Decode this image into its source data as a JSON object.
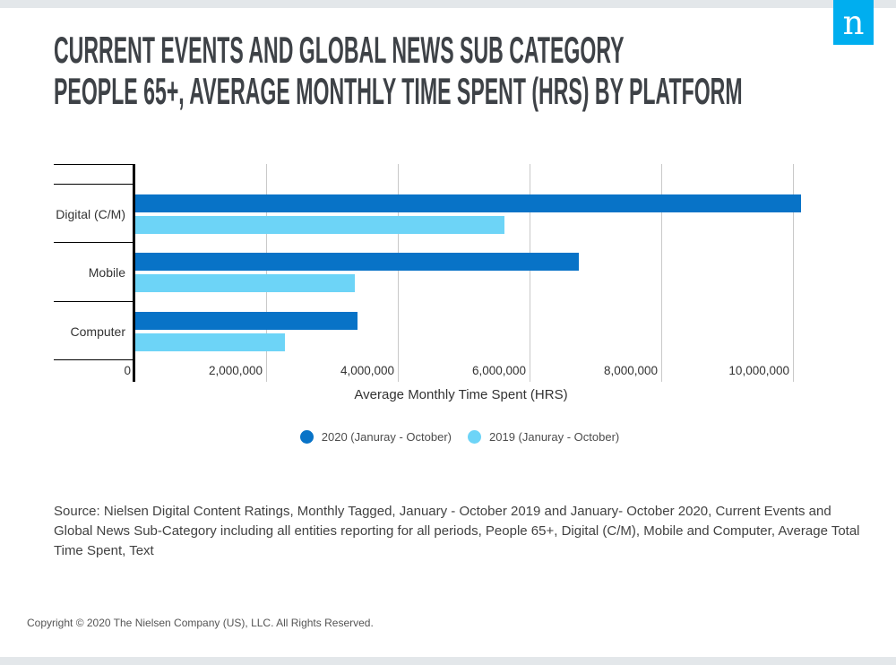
{
  "header": {
    "title_line1": "CURRENT EVENTS AND GLOBAL NEWS SUB CATEGORY",
    "title_line2": "PEOPLE 65+, AVERAGE MONTHLY TIME SPENT (HRS) BY PLATFORM",
    "logo_letter": "n"
  },
  "chart_data": {
    "type": "bar",
    "orientation": "horizontal",
    "categories": [
      "Digital (C/M)",
      "Mobile",
      "Computer"
    ],
    "series": [
      {
        "name": "2020 (Januray - October)",
        "color": "#0873c7",
        "values": [
          10110000,
          6740000,
          3370000
        ]
      },
      {
        "name": "2019 (Januray - October)",
        "color": "#6dd4f7",
        "values": [
          5600000,
          3340000,
          2270000
        ]
      }
    ],
    "xlabel": "Average Monthly Time Spent (HRS)",
    "x_ticks": [
      {
        "value": 0,
        "label": "0"
      },
      {
        "value": 2000000,
        "label": "2,000,000"
      },
      {
        "value": 4000000,
        "label": "4,000,000"
      },
      {
        "value": 6000000,
        "label": "6,000,000"
      },
      {
        "value": 8000000,
        "label": "8,000,000"
      },
      {
        "value": 10000000,
        "label": "10,000,000"
      }
    ],
    "xlim": [
      0,
      11130000
    ],
    "grid": true,
    "legend_position": "bottom"
  },
  "footer": {
    "source_text": "Source: Nielsen Digital Content Ratings, Monthly Tagged, January - October 2019 and January- October 2020, Current Events and Global News Sub-Category including all entities reporting for all periods, People 65+, Digital (C/M), Mobile and Computer, Average Total Time Spent, Text",
    "copyright": "Copyright © 2020 The Nielsen Company (US), LLC. All Rights Reserved."
  },
  "colors": {
    "logo_blue": "#00aeef",
    "strip_gray": "#e3e7ea",
    "bar_2020": "#0873c7",
    "bar_2019": "#6dd4f7"
  }
}
